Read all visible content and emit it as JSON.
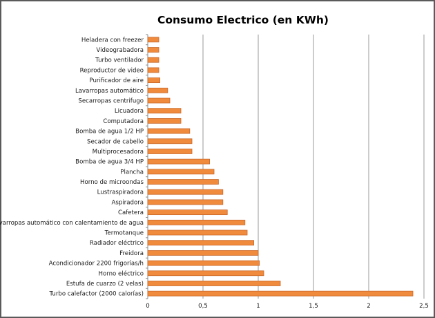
{
  "chart_data": {
    "type": "bar",
    "orientation": "horizontal",
    "title": "Consumo Electrico (en KWh)",
    "xlabel": "",
    "ylabel": "",
    "xlim": [
      0,
      2.5
    ],
    "ticks": [
      "0",
      "0,5",
      "1",
      "1,5",
      "2",
      "2,5"
    ],
    "tick_values": [
      0,
      0.5,
      1,
      1.5,
      2,
      2.5
    ],
    "grid": true,
    "bar_color": "#f08a3c",
    "bar_edge_color": "#c8682a",
    "categories": [
      "Heladera con freezer",
      "Videograbadora",
      "Turbo ventilador",
      "Reproductor de video",
      "Purificador de aire",
      "Lavarropas automático",
      "Secarropas centrifugo",
      "Licuadora",
      "Computadora",
      "Bomba de agua 1/2 HP",
      "Secador de cabello",
      "Multiprocesadora",
      "Bomba de agua 3/4 HP",
      "Plancha",
      "Horno de microondas",
      "Lustraspiradora",
      "Aspiradora",
      "Cafetera",
      "Lavarropas automático con calentamiento de agua",
      "Termotanque",
      "Radiador eléctrico",
      "Freidora",
      "Acondicionador 2200 frigorías/h",
      "Horno eléctrico",
      "Estufa de cuarzo (2 velas)",
      "Turbo calefactor (2000 calorías)"
    ],
    "values": [
      0.1,
      0.1,
      0.1,
      0.1,
      0.11,
      0.18,
      0.2,
      0.3,
      0.3,
      0.38,
      0.4,
      0.4,
      0.56,
      0.6,
      0.64,
      0.68,
      0.68,
      0.72,
      0.88,
      0.9,
      0.96,
      1.0,
      1.01,
      1.05,
      1.2,
      2.4
    ]
  }
}
